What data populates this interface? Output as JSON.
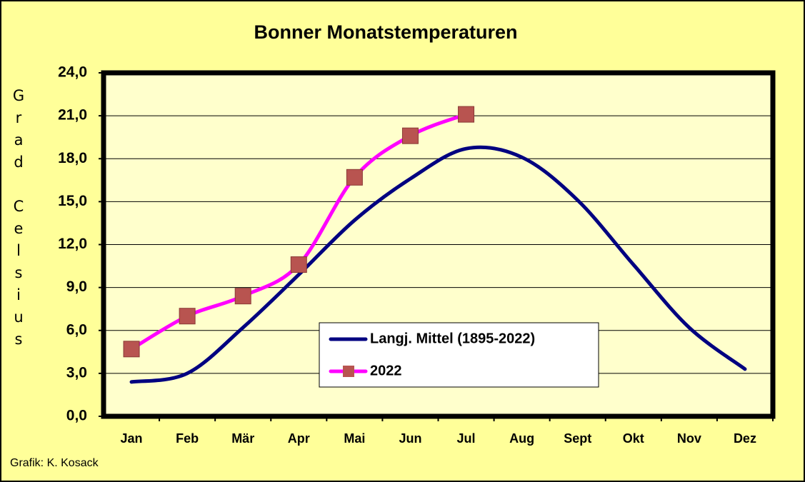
{
  "chart_data": {
    "type": "line",
    "title": "Bonner Monatstemperaturen",
    "y_axis_label": "Grad Celsius",
    "credit": "Grafik:  K. Kosack",
    "categories": [
      "Jan",
      "Feb",
      "Mär",
      "Apr",
      "Mai",
      "Jun",
      "Jul",
      "Aug",
      "Sept",
      "Okt",
      "Nov",
      "Dez"
    ],
    "series": [
      {
        "name": "Langj. Mittel (1895-2022)",
        "color": "#000080",
        "smooth": true,
        "values": [
          2.4,
          3.0,
          6.2,
          9.9,
          13.7,
          16.6,
          18.7,
          18.1,
          15.1,
          10.6,
          6.2,
          3.3
        ]
      },
      {
        "name": "2022",
        "color": "#ff00ff",
        "marker_color": "#b85450",
        "smooth": true,
        "values": [
          4.7,
          7.0,
          8.4,
          10.6,
          16.7,
          19.6,
          21.1,
          null,
          null,
          null,
          null,
          null
        ]
      }
    ],
    "ylim": [
      0,
      24
    ],
    "yticks": [
      {
        "value": 0,
        "label": "0,0"
      },
      {
        "value": 3,
        "label": "3,0"
      },
      {
        "value": 6,
        "label": "6,0"
      },
      {
        "value": 9,
        "label": "9,0"
      },
      {
        "value": 12,
        "label": "12,0"
      },
      {
        "value": 15,
        "label": "15,0"
      },
      {
        "value": 18,
        "label": "18,0"
      },
      {
        "value": 21,
        "label": "21,0"
      },
      {
        "value": 24,
        "label": "24,0"
      }
    ],
    "grid": true
  }
}
